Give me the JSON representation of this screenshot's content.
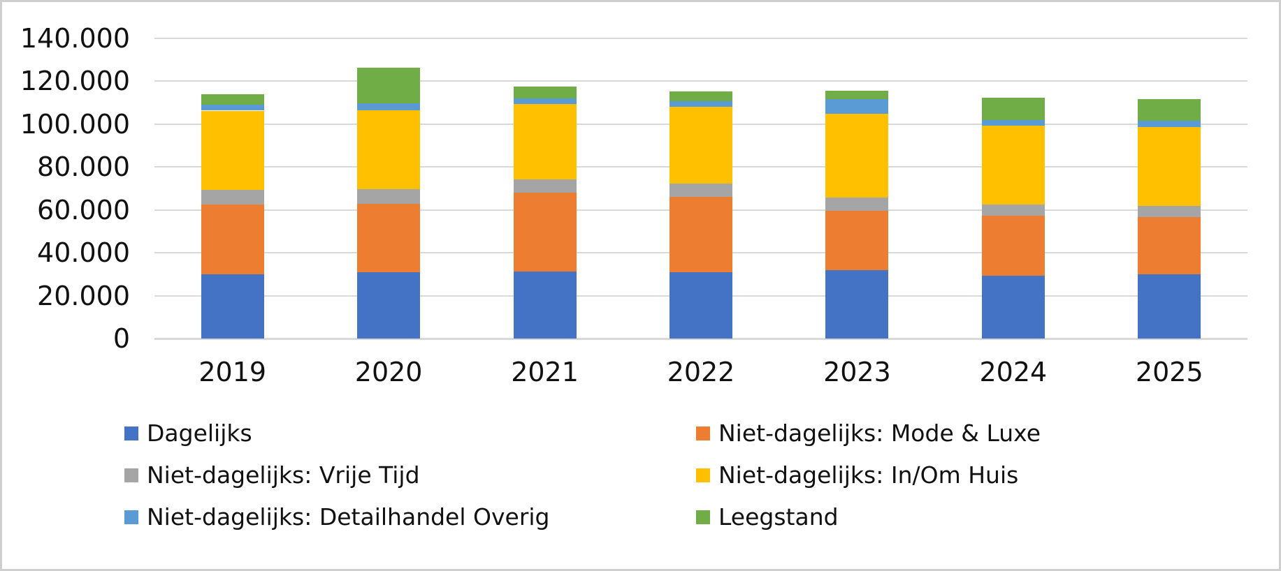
{
  "chart_data": {
    "type": "bar",
    "stacked": true,
    "title": "",
    "xlabel": "",
    "ylabel": "",
    "categories": [
      "2019",
      "2020",
      "2021",
      "2022",
      "2023",
      "2024",
      "2025"
    ],
    "series": [
      {
        "name": "Dagelijks",
        "color": "#4472C4",
        "values": [
          29900,
          30900,
          31300,
          31000,
          31800,
          29300,
          29900
        ]
      },
      {
        "name": "Niet-dagelijks: Mode & Luxe",
        "color": "#ED7D31",
        "values": [
          32500,
          31900,
          36700,
          35000,
          27900,
          28000,
          26900
        ]
      },
      {
        "name": "Niet-dagelijks: Vrije Tijd",
        "color": "#A5A5A5",
        "values": [
          6900,
          6900,
          6100,
          6200,
          6000,
          5100,
          5100
        ]
      },
      {
        "name": "Niet-dagelijks: In/Om Huis",
        "color": "#FFC000",
        "values": [
          37000,
          36900,
          35200,
          35900,
          39000,
          36800,
          36700
        ]
      },
      {
        "name": "Niet-dagelijks: Detailhandel Overig",
        "color": "#5B9BD5",
        "values": [
          2700,
          3000,
          2800,
          2500,
          7000,
          2700,
          2900
        ]
      },
      {
        "name": "Leegstand",
        "color": "#70AD47",
        "values": [
          4900,
          16600,
          5400,
          4700,
          4000,
          10300,
          10300
        ]
      }
    ],
    "ylim": [
      0,
      140000
    ],
    "ytick_step": 20000,
    "ytick_labels": [
      "0",
      "20.000",
      "40.000",
      "60.000",
      "80.000",
      "100.000",
      "120.000",
      "140.000"
    ],
    "grid": true,
    "legend_position": "bottom",
    "legend_columns": 2,
    "legend_order_row_major": [
      "Dagelijks",
      "Niet-dagelijks: Mode & Luxe",
      "Niet-dagelijks: Vrije Tijd",
      "Niet-dagelijks: In/Om Huis",
      "Niet-dagelijks: Detailhandel Overig",
      "Leegstand"
    ],
    "gridline_color": "#d9d9d9",
    "frame_border_color": "#cfcfcf",
    "text_color": "#111111",
    "background_color": "#ffffff"
  }
}
